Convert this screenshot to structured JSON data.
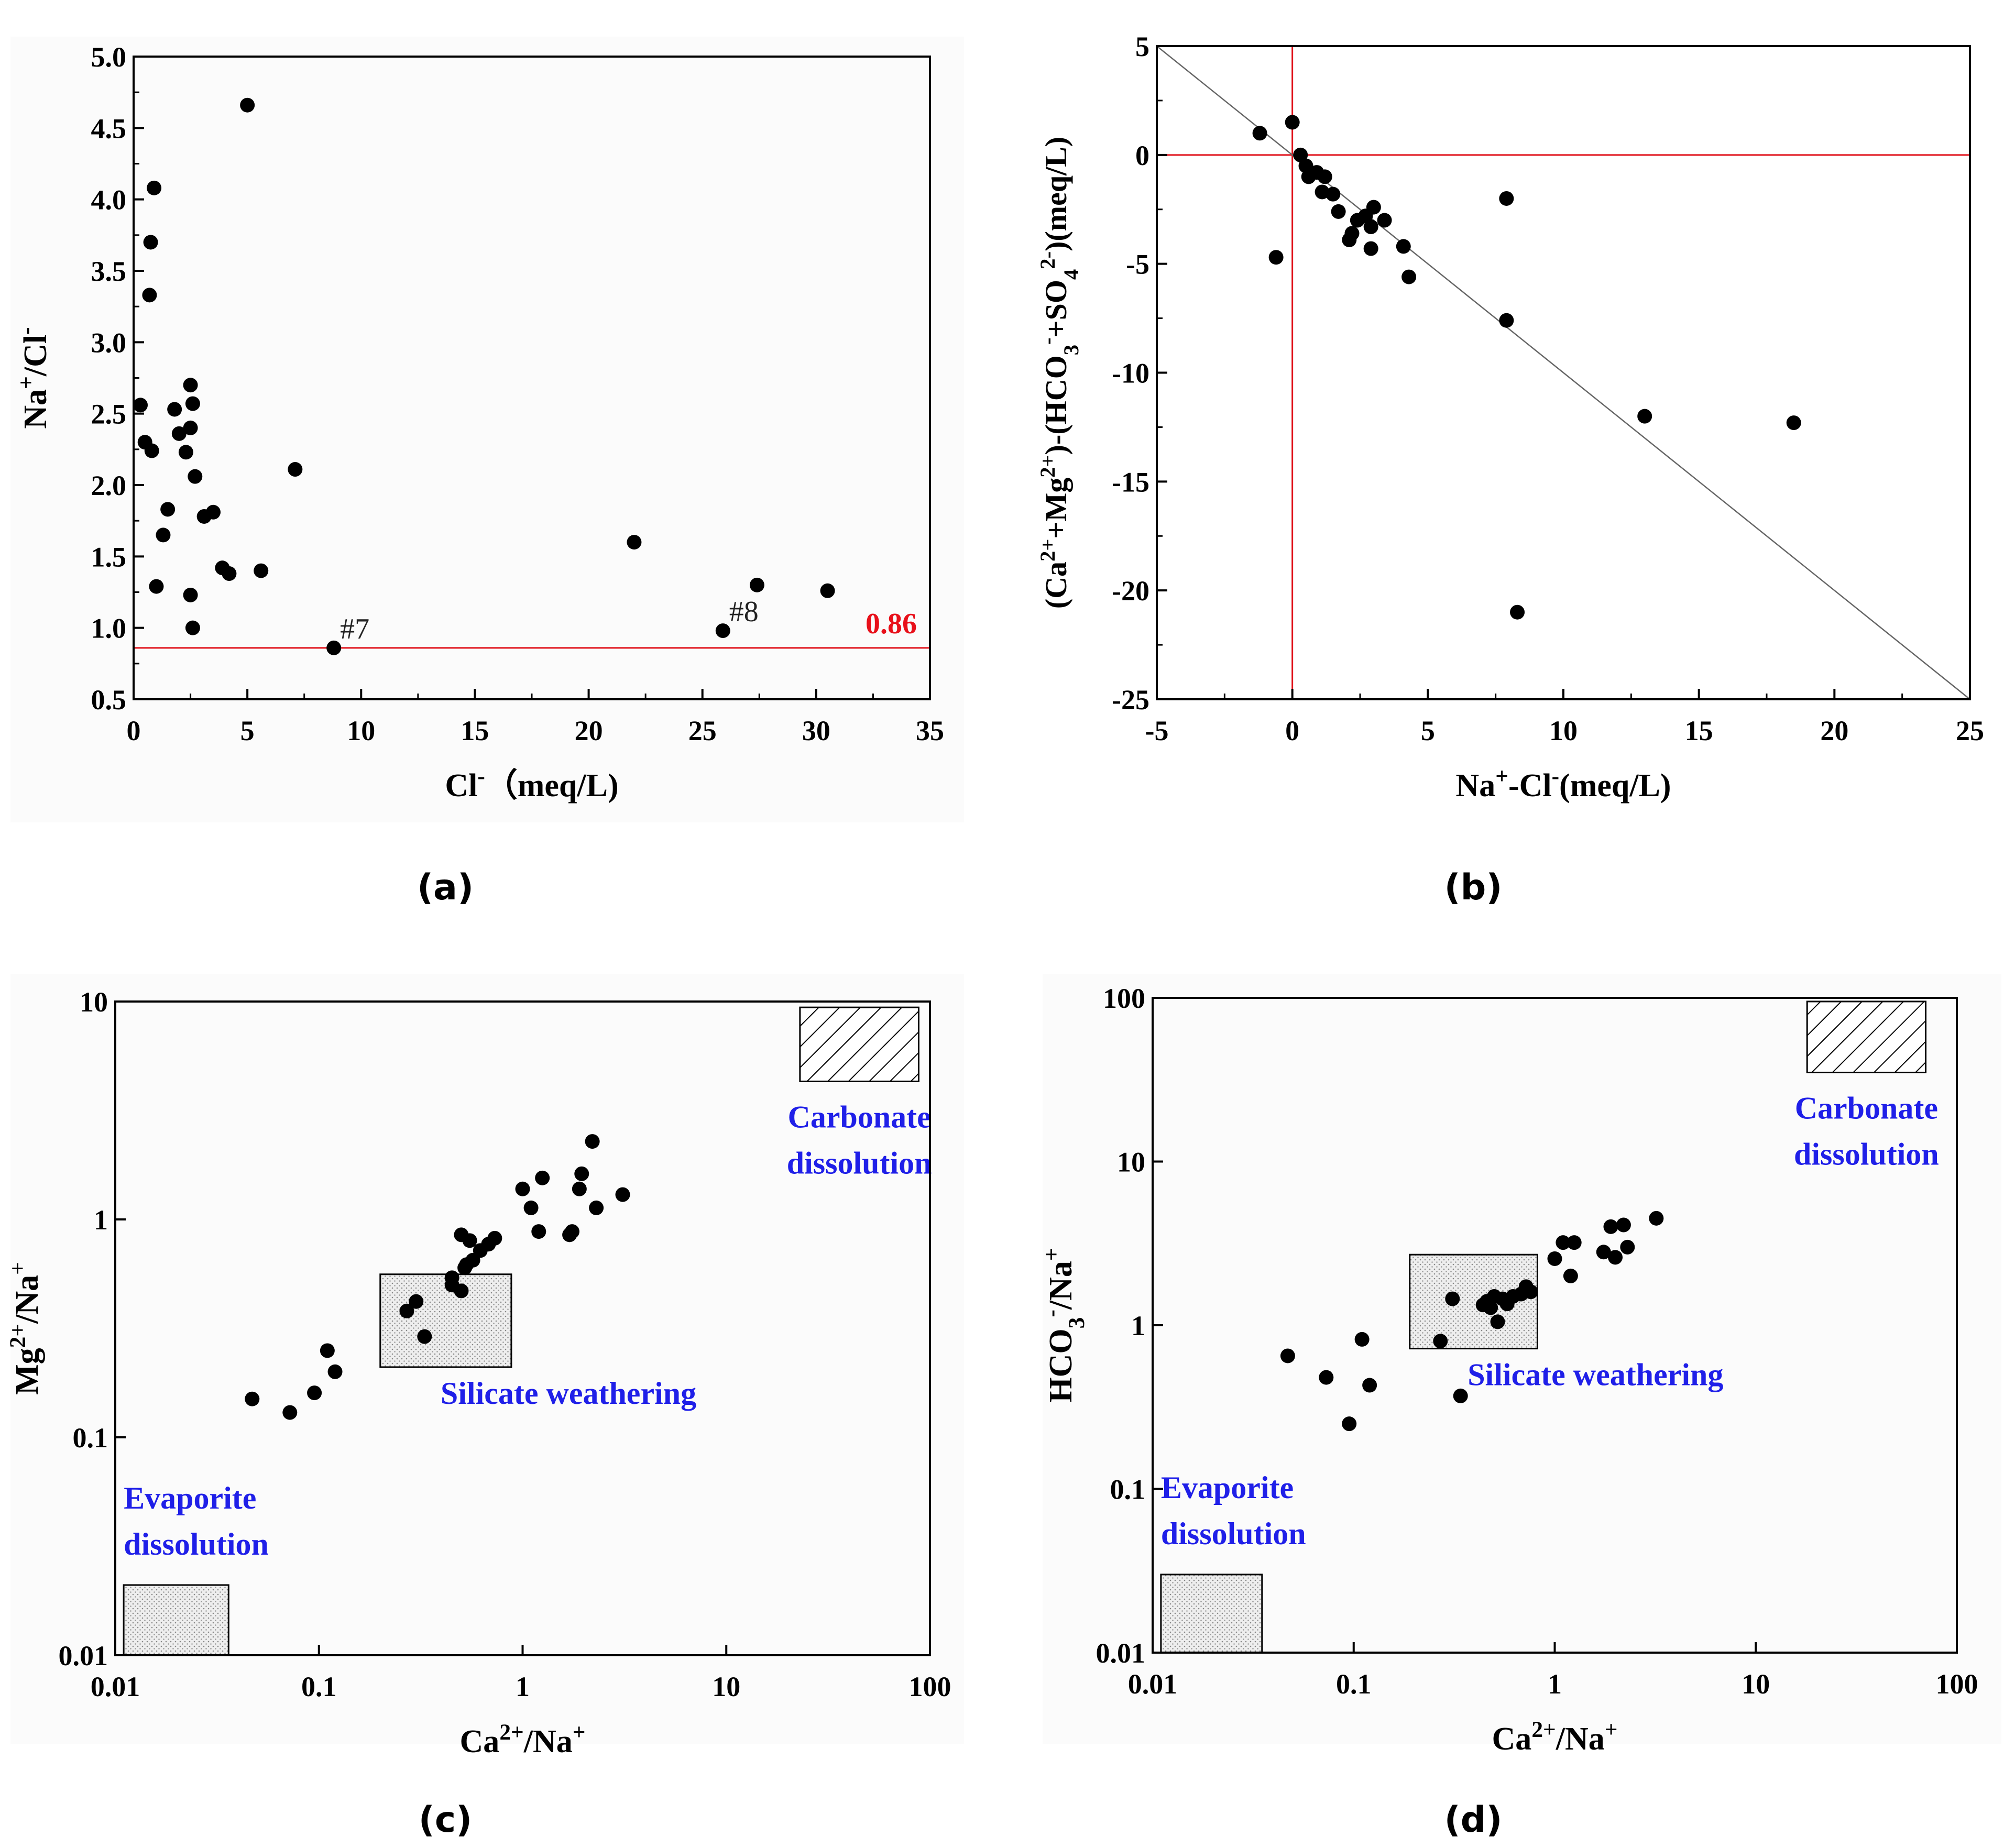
{
  "figure": {
    "captions": [
      "(a)",
      "(b)",
      "(c)",
      "(d)"
    ]
  },
  "colors": {
    "point": "#000000",
    "ref_line": "#e0121b",
    "ref_value_text": "#e8101a",
    "region_text": "#1f1fe8",
    "plot_bg": "#fbfbfb"
  },
  "chart_data": [
    {
      "id": "a",
      "type": "scatter",
      "caption": "(a)",
      "ylabel": "Na⁺/Cl⁻",
      "xlabel": "Cl⁻（meq/L)",
      "xlim": [
        0,
        35
      ],
      "ylim": [
        0.5,
        5.0
      ],
      "xticks": [
        0,
        5,
        10,
        15,
        20,
        25,
        30,
        35
      ],
      "xtick_labels": [
        "0",
        "5",
        "10",
        "15",
        "20",
        "25",
        "30",
        "35"
      ],
      "yticks": [
        0.5,
        1.0,
        1.5,
        2.0,
        2.5,
        3.0,
        3.5,
        4.0,
        4.5,
        5.0
      ],
      "ytick_labels": [
        "0.5",
        "1.0",
        "1.5",
        "2.0",
        "2.5",
        "3.0",
        "3.5",
        "4.0",
        "4.5",
        "5.0"
      ],
      "reference_lines": [
        {
          "axis": "y",
          "value": 0.86,
          "label": "0.86"
        }
      ],
      "annotations": [
        {
          "text": "#7",
          "x": 8.8,
          "y": 0.86
        },
        {
          "text": "#8",
          "x": 25.9,
          "y": 0.98
        }
      ],
      "points": [
        {
          "x": 0.3,
          "y": 2.56
        },
        {
          "x": 0.5,
          "y": 2.3
        },
        {
          "x": 0.7,
          "y": 3.33
        },
        {
          "x": 0.75,
          "y": 3.7
        },
        {
          "x": 0.8,
          "y": 2.24
        },
        {
          "x": 0.9,
          "y": 4.08
        },
        {
          "x": 1.0,
          "y": 1.29
        },
        {
          "x": 1.3,
          "y": 1.65
        },
        {
          "x": 1.5,
          "y": 1.83
        },
        {
          "x": 1.8,
          "y": 2.53
        },
        {
          "x": 2.0,
          "y": 2.36
        },
        {
          "x": 2.3,
          "y": 2.23
        },
        {
          "x": 2.5,
          "y": 2.4
        },
        {
          "x": 2.5,
          "y": 2.7
        },
        {
          "x": 2.6,
          "y": 2.57
        },
        {
          "x": 2.5,
          "y": 1.23
        },
        {
          "x": 2.6,
          "y": 1.0
        },
        {
          "x": 2.7,
          "y": 2.06
        },
        {
          "x": 3.1,
          "y": 1.78
        },
        {
          "x": 3.5,
          "y": 1.81
        },
        {
          "x": 3.9,
          "y": 1.42
        },
        {
          "x": 4.2,
          "y": 1.38
        },
        {
          "x": 5.0,
          "y": 4.66
        },
        {
          "x": 5.6,
          "y": 1.4
        },
        {
          "x": 7.1,
          "y": 2.11
        },
        {
          "x": 8.8,
          "y": 0.86
        },
        {
          "x": 22.0,
          "y": 1.6
        },
        {
          "x": 25.9,
          "y": 0.98
        },
        {
          "x": 27.4,
          "y": 1.3
        },
        {
          "x": 30.5,
          "y": 1.26
        }
      ]
    },
    {
      "id": "b",
      "type": "scatter",
      "caption": "(b)",
      "ylabel": "(Ca²⁺+Mg²⁺)-(HCO₃⁻+SO₄²⁻)(meq/L)",
      "xlabel": "Na⁺-Cl⁻(meq/L)",
      "xlim": [
        -5,
        25
      ],
      "ylim": [
        -25,
        5
      ],
      "xticks": [
        -5,
        0,
        5,
        10,
        15,
        20,
        25
      ],
      "xtick_labels": [
        "-5",
        "0",
        "5",
        "10",
        "15",
        "20",
        "25"
      ],
      "yticks": [
        -25,
        -20,
        -15,
        -10,
        -5,
        0,
        5
      ],
      "ytick_labels": [
        "-25",
        "-20",
        "-15",
        "-10",
        "-5",
        "0",
        "5"
      ],
      "reference_lines": [
        {
          "axis": "x",
          "value": 0
        },
        {
          "axis": "y",
          "value": 0
        }
      ],
      "diagonal": {
        "slope": -1,
        "from": [
          -5,
          5
        ],
        "to": [
          25,
          -25
        ]
      },
      "points": [
        {
          "x": -1.2,
          "y": 1.0
        },
        {
          "x": 0.0,
          "y": 1.5
        },
        {
          "x": 0.3,
          "y": 0.0
        },
        {
          "x": 0.5,
          "y": -0.5
        },
        {
          "x": 0.6,
          "y": -1.0
        },
        {
          "x": 0.9,
          "y": -0.8
        },
        {
          "x": 1.2,
          "y": -1.0
        },
        {
          "x": 1.1,
          "y": -1.7
        },
        {
          "x": 1.5,
          "y": -1.8
        },
        {
          "x": 1.7,
          "y": -2.6
        },
        {
          "x": 2.1,
          "y": -3.9
        },
        {
          "x": 2.2,
          "y": -3.6
        },
        {
          "x": 2.4,
          "y": -3.0
        },
        {
          "x": 2.7,
          "y": -2.8
        },
        {
          "x": 2.9,
          "y": -3.3
        },
        {
          "x": 3.0,
          "y": -2.4
        },
        {
          "x": 2.9,
          "y": -4.3
        },
        {
          "x": 3.4,
          "y": -3.0
        },
        {
          "x": 4.1,
          "y": -4.2
        },
        {
          "x": 4.3,
          "y": -5.6
        },
        {
          "x": 7.9,
          "y": -2.0
        },
        {
          "x": 7.9,
          "y": -7.6
        },
        {
          "x": 8.3,
          "y": -21.0
        },
        {
          "x": 13.0,
          "y": -12.0
        },
        {
          "x": 18.5,
          "y": -12.3
        },
        {
          "x": -0.6,
          "y": -4.7
        }
      ]
    },
    {
      "id": "c",
      "type": "scatter",
      "scale": "log-log",
      "caption": "(c)",
      "ylabel": "Mg²⁺/Na⁺",
      "xlabel": "Ca²⁺/Na⁺",
      "xlim": [
        0.01,
        100
      ],
      "ylim": [
        0.01,
        10
      ],
      "xticks": [
        0.01,
        0.1,
        1,
        10,
        100
      ],
      "xtick_labels": [
        "0.01",
        "0.1",
        "1",
        "10",
        "100"
      ],
      "yticks": [
        0.01,
        0.1,
        1,
        10
      ],
      "ytick_labels": [
        "0.01",
        "0.1",
        "1",
        "10"
      ],
      "regions": [
        {
          "name": "Carbonate dissolution",
          "lines": [
            "Carbonate",
            "dissolution"
          ],
          "pattern": "hatch",
          "x": [
            23,
            88
          ],
          "y": [
            4.3,
            9.4
          ]
        },
        {
          "name": "Silicate weathering",
          "lines": [
            "Silicate weathering"
          ],
          "pattern": "dots",
          "x": [
            0.2,
            0.88
          ],
          "y": [
            0.21,
            0.56
          ]
        },
        {
          "name": "Evaporite dissolution",
          "lines": [
            "Evaporite",
            "dissolution"
          ],
          "pattern": "dots",
          "x": [
            0.011,
            0.036
          ],
          "y": [
            0.01,
            0.021
          ]
        }
      ],
      "points": [
        {
          "x": 0.047,
          "y": 0.15
        },
        {
          "x": 0.072,
          "y": 0.13
        },
        {
          "x": 0.095,
          "y": 0.16
        },
        {
          "x": 0.11,
          "y": 0.25
        },
        {
          "x": 0.12,
          "y": 0.2
        },
        {
          "x": 0.27,
          "y": 0.38
        },
        {
          "x": 0.3,
          "y": 0.42
        },
        {
          "x": 0.33,
          "y": 0.29
        },
        {
          "x": 0.45,
          "y": 0.5
        },
        {
          "x": 0.45,
          "y": 0.54
        },
        {
          "x": 0.5,
          "y": 0.47
        },
        {
          "x": 0.5,
          "y": 0.85
        },
        {
          "x": 0.52,
          "y": 0.6
        },
        {
          "x": 0.53,
          "y": 0.62
        },
        {
          "x": 0.55,
          "y": 0.8
        },
        {
          "x": 0.57,
          "y": 0.65
        },
        {
          "x": 0.62,
          "y": 0.72
        },
        {
          "x": 0.68,
          "y": 0.77
        },
        {
          "x": 0.73,
          "y": 0.82
        },
        {
          "x": 1.0,
          "y": 1.38
        },
        {
          "x": 1.1,
          "y": 1.13
        },
        {
          "x": 1.2,
          "y": 0.88
        },
        {
          "x": 1.25,
          "y": 1.55
        },
        {
          "x": 1.7,
          "y": 0.85
        },
        {
          "x": 1.75,
          "y": 0.88
        },
        {
          "x": 1.9,
          "y": 1.38
        },
        {
          "x": 1.95,
          "y": 1.62
        },
        {
          "x": 2.2,
          "y": 2.28
        },
        {
          "x": 2.3,
          "y": 1.13
        },
        {
          "x": 3.1,
          "y": 1.3
        }
      ]
    },
    {
      "id": "d",
      "type": "scatter",
      "scale": "log-log",
      "caption": "(d)",
      "ylabel": "HCO₃⁻/Na⁺",
      "xlabel": "Ca²⁺/Na⁺",
      "xlim": [
        0.01,
        100
      ],
      "ylim": [
        0.01,
        100
      ],
      "xticks": [
        0.01,
        0.1,
        1,
        10,
        100
      ],
      "xtick_labels": [
        "0.01",
        "0.1",
        "1",
        "10",
        "100"
      ],
      "yticks": [
        0.01,
        0.1,
        1,
        10,
        100
      ],
      "ytick_labels": [
        "0.01",
        "0.1",
        "1",
        "10",
        "100"
      ],
      "regions": [
        {
          "name": "Carbonate dissolution",
          "lines": [
            "Carbonate",
            "dissolution"
          ],
          "pattern": "hatch",
          "x": [
            18,
            70
          ],
          "y": [
            35,
            95
          ]
        },
        {
          "name": "Silicate weathering",
          "lines": [
            "Silicate weathering"
          ],
          "pattern": "dots",
          "x": [
            0.19,
            0.82
          ],
          "y": [
            0.72,
            2.7
          ]
        },
        {
          "name": "Evaporite dissolution",
          "lines": [
            "Evaporite",
            "dissolution"
          ],
          "pattern": "dots",
          "x": [
            0.011,
            0.035
          ],
          "y": [
            0.01,
            0.03
          ]
        }
      ],
      "points": [
        {
          "x": 0.047,
          "y": 0.65
        },
        {
          "x": 0.073,
          "y": 0.48
        },
        {
          "x": 0.095,
          "y": 0.25
        },
        {
          "x": 0.11,
          "y": 0.82
        },
        {
          "x": 0.12,
          "y": 0.43
        },
        {
          "x": 0.27,
          "y": 0.8
        },
        {
          "x": 0.31,
          "y": 1.45
        },
        {
          "x": 0.34,
          "y": 0.37
        },
        {
          "x": 0.44,
          "y": 1.33
        },
        {
          "x": 0.46,
          "y": 1.4
        },
        {
          "x": 0.48,
          "y": 1.28
        },
        {
          "x": 0.5,
          "y": 1.5
        },
        {
          "x": 0.52,
          "y": 1.05
        },
        {
          "x": 0.55,
          "y": 1.45
        },
        {
          "x": 0.58,
          "y": 1.35
        },
        {
          "x": 0.62,
          "y": 1.5
        },
        {
          "x": 0.68,
          "y": 1.55
        },
        {
          "x": 0.72,
          "y": 1.72
        },
        {
          "x": 0.76,
          "y": 1.6
        },
        {
          "x": 1.0,
          "y": 2.55
        },
        {
          "x": 1.1,
          "y": 3.2
        },
        {
          "x": 1.2,
          "y": 2.0
        },
        {
          "x": 1.25,
          "y": 3.2
        },
        {
          "x": 1.75,
          "y": 2.8
        },
        {
          "x": 1.9,
          "y": 4.0
        },
        {
          "x": 2.0,
          "y": 2.6
        },
        {
          "x": 2.2,
          "y": 4.1
        },
        {
          "x": 2.3,
          "y": 3.0
        },
        {
          "x": 3.2,
          "y": 4.5
        }
      ]
    }
  ]
}
